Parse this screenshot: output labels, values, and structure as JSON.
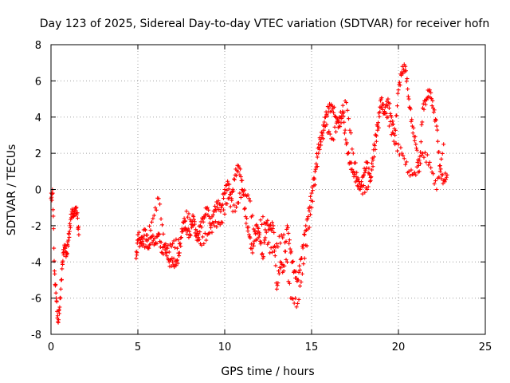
{
  "chart_data": {
    "type": "scatter",
    "title": "Day 123 of 2025, Sidereal Day-to-day VTEC variation (SDTVAR) for receiver hofn",
    "xlabel": "GPS time / hours",
    "ylabel": "SDTVAR / TECUs",
    "xlim": [
      0,
      25
    ],
    "ylim": [
      -8,
      8
    ],
    "xticks": [
      0,
      5,
      10,
      15,
      20,
      25
    ],
    "yticks": [
      -8,
      -6,
      -4,
      -2,
      0,
      2,
      4,
      6,
      8
    ],
    "grid": true,
    "marker": "+",
    "color": "#ff0000",
    "series": [
      {
        "name": "SDTVAR hofn",
        "segments": [
          {
            "x": [
              0.0,
              0.1,
              0.2,
              0.3,
              0.4,
              0.5,
              0.6,
              0.7,
              0.8,
              0.9,
              1.0,
              1.1,
              1.2,
              1.3,
              1.4,
              1.5,
              1.6
            ],
            "y": [
              -0.5,
              -0.2,
              -4.5,
              -6.0,
              -7.3,
              -6.5,
              -5.0,
              -3.5,
              -3.2,
              -3.6,
              -2.8,
              -2.0,
              -1.2,
              -1.5,
              -1.0,
              -1.3,
              -2.5
            ]
          },
          {
            "x": [
              4.9,
              5.0,
              5.2,
              5.4,
              5.6,
              5.8,
              6.0,
              6.2,
              6.4,
              6.6,
              6.8,
              7.0,
              7.2,
              7.4,
              7.6,
              7.8,
              8.0,
              8.2,
              8.4,
              8.6,
              8.8,
              9.0,
              9.2,
              9.4,
              9.6,
              9.8,
              10.0,
              10.2,
              10.4,
              10.6,
              10.8,
              11.0,
              11.2,
              11.4,
              11.6,
              11.8,
              12.0,
              12.2,
              12.4,
              12.6,
              12.8,
              13.0,
              13.2,
              13.4,
              13.6,
              13.8,
              14.0,
              14.2,
              14.4,
              14.6,
              14.8,
              15.0,
              15.2,
              15.4,
              15.6,
              15.8,
              16.0,
              16.2,
              16.4,
              16.6,
              16.8,
              17.0,
              17.2,
              17.4,
              17.6,
              17.8,
              18.0,
              18.2,
              18.4,
              18.6,
              18.8,
              19.0,
              19.2,
              19.4,
              19.6,
              19.8,
              20.0,
              20.2,
              20.4,
              20.6,
              20.8,
              21.0,
              21.2,
              21.4,
              21.6,
              21.8,
              22.0,
              22.2,
              22.4,
              22.6,
              22.8
            ],
            "y": [
              -3.8,
              -2.8,
              -3.0,
              -2.2,
              -3.2,
              -2.6,
              -3.0,
              -2.5,
              -3.5,
              -3.0,
              -4.0,
              -4.0,
              -4.2,
              -3.5,
              -1.8,
              -2.2,
              -2.5,
              -1.5,
              -2.8,
              -2.0,
              -1.5,
              -1.0,
              -2.0,
              -1.2,
              -0.8,
              -1.0,
              0.0,
              0.3,
              -0.5,
              0.8,
              1.3,
              0.5,
              -1.5,
              -2.5,
              -3.5,
              -2.0,
              -2.5,
              -3.8,
              -1.8,
              -2.2,
              -2.0,
              -5.5,
              -4.0,
              -4.5,
              -2.0,
              -3.5,
              -4.5,
              -5.0,
              -3.8,
              -2.5,
              -1.5,
              -0.2,
              1.0,
              2.5,
              3.0,
              4.0,
              4.5,
              4.6,
              4.0,
              3.5,
              4.2,
              2.5,
              1.5,
              1.0,
              0.5,
              0.0,
              0.8,
              1.5,
              0.5,
              2.5,
              3.5,
              5.0,
              4.2,
              5.0,
              4.0,
              3.0,
              5.5,
              6.5,
              6.8,
              5.0,
              3.5,
              2.5,
              1.0,
              4.5,
              5.0,
              5.5,
              4.5,
              3.5,
              1.0,
              0.5,
              0.8
            ]
          },
          {
            "x": [
              5.0,
              5.4,
              5.8,
              6.2,
              6.6,
              7.0,
              7.4,
              7.8,
              8.2,
              8.6,
              9.0,
              9.4,
              9.8,
              10.2,
              10.6,
              11.0,
              11.4,
              11.8,
              12.2,
              12.6,
              13.0,
              13.4,
              13.8,
              14.2,
              14.6,
              15.0,
              15.4,
              15.8,
              16.2,
              16.6,
              17.0,
              17.4,
              17.8,
              18.2,
              18.6,
              19.0,
              19.4,
              19.8,
              20.2,
              20.6,
              21.0,
              21.4,
              21.8,
              22.2,
              22.6
            ],
            "y": [
              -2.5,
              -3.2,
              -1.8,
              -0.5,
              -3.5,
              -3.0,
              -3.0,
              -1.2,
              -2.0,
              -3.0,
              -2.5,
              -2.0,
              -1.8,
              -0.5,
              -1.2,
              0.0,
              -0.5,
              -2.8,
              -1.5,
              -3.5,
              -3.0,
              -2.5,
              -6.0,
              -6.3,
              -3.8,
              -1.0,
              2.0,
              3.5,
              2.8,
              4.0,
              4.8,
              2.0,
              0.0,
              0.0,
              1.8,
              4.5,
              4.0,
              2.5,
              2.0,
              1.0,
              0.8,
              2.0,
              1.5,
              0.0,
              2.5
            ]
          }
        ]
      }
    ]
  }
}
